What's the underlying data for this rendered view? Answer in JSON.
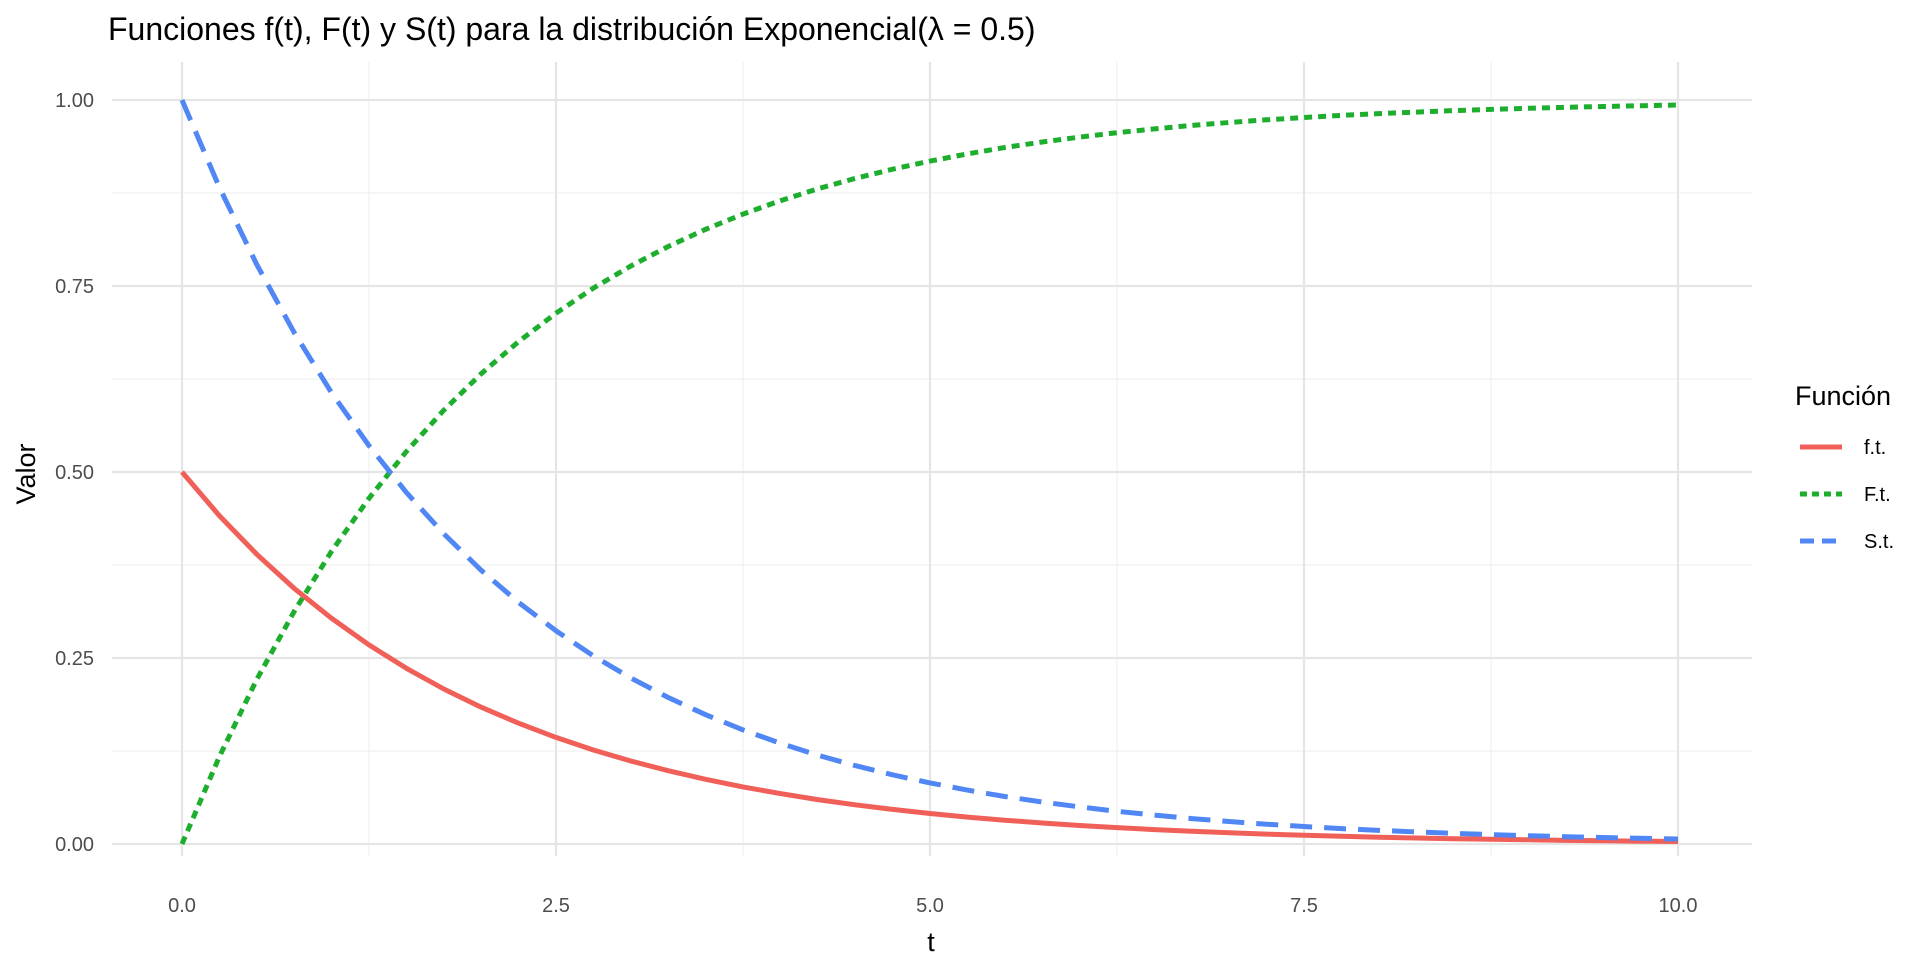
{
  "chart_data": {
    "type": "line",
    "title": "Funciones f(t), F(t) y S(t) para la distribución Exponencial(λ = 0.5)",
    "xlabel": "t",
    "ylabel": "Valor",
    "xlim": [
      0,
      10
    ],
    "ylim": [
      0,
      1
    ],
    "x_ticks": [
      0,
      2.5,
      5,
      7.5,
      10
    ],
    "x_tick_labels": [
      "0.0",
      "2.5",
      "5.0",
      "7.5",
      "10.0"
    ],
    "y_ticks": [
      0,
      0.25,
      0.5,
      0.75,
      1
    ],
    "y_tick_labels": [
      "0.00",
      "0.25",
      "0.50",
      "0.75",
      "1.00"
    ],
    "grid": true,
    "legend": {
      "title": "Función",
      "placement": "right"
    },
    "x": [
      0,
      0.25,
      0.5,
      0.75,
      1,
      1.25,
      1.5,
      1.75,
      2,
      2.25,
      2.5,
      2.75,
      3,
      3.25,
      3.5,
      3.75,
      4,
      4.25,
      4.5,
      4.75,
      5,
      5.25,
      5.5,
      5.75,
      6,
      6.25,
      6.5,
      6.75,
      7,
      7.25,
      7.5,
      7.75,
      8,
      8.25,
      8.5,
      8.75,
      9,
      9.25,
      9.5,
      9.75,
      10
    ],
    "series": [
      {
        "name": "f.t.",
        "color": "#F06058",
        "dash": "solid",
        "values": [
          0.5,
          0.4412,
          0.3894,
          0.3436,
          0.3033,
          0.2676,
          0.2362,
          0.2084,
          0.1839,
          0.1623,
          0.1433,
          0.1264,
          0.1116,
          0.0985,
          0.0869,
          0.0767,
          0.0677,
          0.0597,
          0.0527,
          0.0465,
          0.041,
          0.0362,
          0.032,
          0.0282,
          0.0249,
          0.022,
          0.0194,
          0.0171,
          0.0151,
          0.0133,
          0.0118,
          0.0104,
          0.0092,
          0.0081,
          0.0071,
          0.0063,
          0.0056,
          0.0049,
          0.0043,
          0.0038,
          0.0034
        ]
      },
      {
        "name": "F.t.",
        "color": "#1EAE2E",
        "dash": "dotted",
        "values": [
          0,
          0.1175,
          0.2212,
          0.3127,
          0.3935,
          0.4647,
          0.5276,
          0.5831,
          0.6321,
          0.6753,
          0.7135,
          0.7472,
          0.7769,
          0.8031,
          0.8262,
          0.8466,
          0.8647,
          0.8806,
          0.8946,
          0.907,
          0.9179,
          0.9276,
          0.9361,
          0.9436,
          0.9502,
          0.9561,
          0.9612,
          0.9658,
          0.9698,
          0.9734,
          0.9765,
          0.9793,
          0.9817,
          0.9838,
          0.9857,
          0.9874,
          0.9889,
          0.9902,
          0.9913,
          0.9924,
          0.9933
        ]
      },
      {
        "name": "S.t.",
        "color": "#5087F5",
        "dash": "dashed",
        "values": [
          1,
          0.8825,
          0.7788,
          0.6873,
          0.6065,
          0.5353,
          0.4724,
          0.4169,
          0.3679,
          0.3247,
          0.2865,
          0.2528,
          0.2231,
          0.1969,
          0.1738,
          0.1534,
          0.1353,
          0.1194,
          0.1054,
          0.093,
          0.0821,
          0.0724,
          0.0639,
          0.0564,
          0.0498,
          0.0439,
          0.0388,
          0.0342,
          0.0302,
          0.0266,
          0.0235,
          0.0207,
          0.0183,
          0.0162,
          0.0143,
          0.0126,
          0.0111,
          0.0098,
          0.0087,
          0.0076,
          0.0067
        ]
      }
    ]
  }
}
